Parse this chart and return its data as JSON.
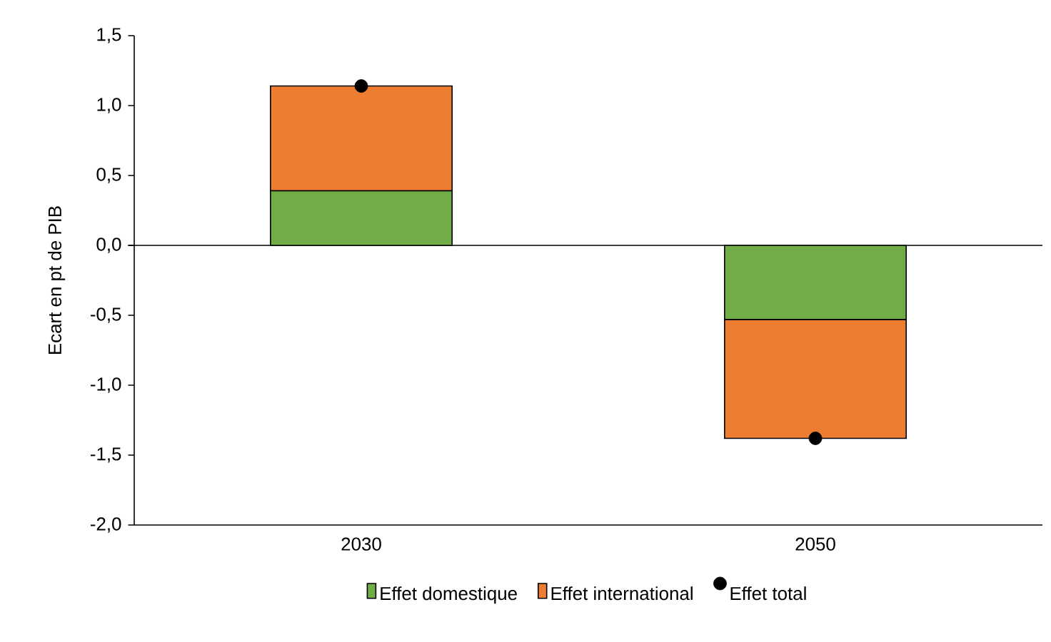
{
  "chart_data": {
    "type": "bar",
    "stacked": true,
    "ylabel": "Ecart en pt de PIB",
    "categories": [
      "2030",
      "2050"
    ],
    "ylim": [
      -2.0,
      1.5
    ],
    "yticks": [
      {
        "value": -2.0,
        "label": "-2,0"
      },
      {
        "value": -1.5,
        "label": "-1,5"
      },
      {
        "value": -1.0,
        "label": "-1,0"
      },
      {
        "value": -0.5,
        "label": "-0,5"
      },
      {
        "value": 0.0,
        "label": "0,0"
      },
      {
        "value": 0.5,
        "label": "0,5"
      },
      {
        "value": 1.0,
        "label": "1,0"
      },
      {
        "value": 1.5,
        "label": "1,5"
      }
    ],
    "legend": "bottom",
    "series": [
      {
        "name": "Effet domestique",
        "color": "#70ad47",
        "values": [
          0.39,
          -0.53
        ]
      },
      {
        "name": "Effet international",
        "color": "#ed7d31",
        "values": [
          0.75,
          -0.85
        ]
      },
      {
        "name": "Effet total",
        "type": "scatter",
        "color": "#000000",
        "values": [
          1.14,
          -1.38
        ]
      }
    ]
  }
}
